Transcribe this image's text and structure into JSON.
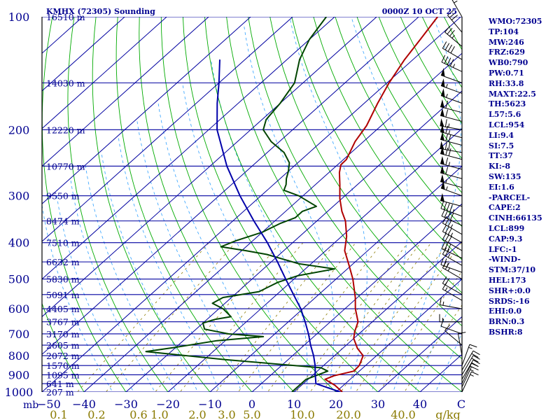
{
  "header": {
    "station_title": "KMHX (72305) Sounding",
    "valid_time": "0000Z 10 OCT 25"
  },
  "indices": [
    {
      "text": "WMO:72305"
    },
    {
      "text": "TP:104"
    },
    {
      "text": "MW:246"
    },
    {
      "text": "FRZ:629"
    },
    {
      "text": "WB0:790"
    },
    {
      "text": "PW:0.71"
    },
    {
      "text": "RH:33.8"
    },
    {
      "text": "MAXT:22.5"
    },
    {
      "text": "TH:5623"
    },
    {
      "text": "L57:5.6"
    },
    {
      "text": "LCL:954"
    },
    {
      "text": "LI:9.4"
    },
    {
      "text": "SI:7.5"
    },
    {
      "text": "TT:37"
    },
    {
      "text": "KI:-8"
    },
    {
      "text": "SW:135"
    },
    {
      "text": "EI:1.6"
    },
    {
      "text": "-PARCEL-"
    },
    {
      "text": "CAPE:2"
    },
    {
      "text": "CINH:66135"
    },
    {
      "text": "LCL:899"
    },
    {
      "text": "CAP:9.3"
    },
    {
      "text": "LFC:-1"
    },
    {
      "text": "-WIND-"
    },
    {
      "text": "STM:37/10"
    },
    {
      "text": "HEL:173"
    },
    {
      "text": "SHR+:0.0"
    },
    {
      "text": "SRDS:-16"
    },
    {
      "text": "EHI:0.0"
    },
    {
      "text": "BRN:0.3"
    },
    {
      "text": "BSHR:8"
    }
  ],
  "chart_data": {
    "type": "line",
    "subtype": "skew-T log-P sounding",
    "title": "KMHX (72305) Sounding",
    "pressure_range_mb": [
      1000,
      100
    ],
    "temperature_range_c": [
      -50,
      50
    ],
    "y_axis_unit": "mb",
    "pressure_labels": [
      {
        "p": 100,
        "label": "100"
      },
      {
        "p": 200,
        "label": "200"
      },
      {
        "p": 300,
        "label": "300"
      },
      {
        "p": 400,
        "label": "400"
      },
      {
        "p": 500,
        "label": "500"
      },
      {
        "p": 600,
        "label": "600"
      },
      {
        "p": 700,
        "label": "700"
      },
      {
        "p": 800,
        "label": "800"
      },
      {
        "p": 900,
        "label": "900"
      },
      {
        "p": 1000,
        "label": "1000"
      }
    ],
    "temperature_ticks": [
      {
        "t": -40,
        "label": "−40"
      },
      {
        "t": -30,
        "label": "−30"
      },
      {
        "t": -20,
        "label": "−20"
      },
      {
        "t": -10,
        "label": "−10"
      },
      {
        "t": 0,
        "label": "0"
      },
      {
        "t": 10,
        "label": "10"
      },
      {
        "t": 20,
        "label": "20"
      },
      {
        "t": 30,
        "label": "30"
      },
      {
        "t": 40,
        "label": "40"
      }
    ],
    "axis_corner_labels": {
      "left_unit": "mb",
      "left_temp": "−50",
      "right_temp": "C"
    },
    "mixing_ratio_labels": [
      {
        "t": -46,
        "label": "0.1"
      },
      {
        "t": -37,
        "label": "0.2"
      },
      {
        "t": -27,
        "label": "0.6"
      },
      {
        "t": -22,
        "label": "1.0"
      },
      {
        "t": -13,
        "label": "2.0"
      },
      {
        "t": -6,
        "label": "3.0"
      },
      {
        "t": 0,
        "label": "5.0"
      },
      {
        "t": 12,
        "label": "10.0"
      },
      {
        "t": 23,
        "label": "20.0"
      },
      {
        "t": 36,
        "label": "40.0"
      }
    ],
    "mixing_ratio_unit": "g/kg",
    "height_labels": [
      {
        "p": 100,
        "label": "16510 m"
      },
      {
        "p": 150,
        "label": "14030 m"
      },
      {
        "p": 200,
        "label": "12220 m"
      },
      {
        "p": 250,
        "label": "10770 m"
      },
      {
        "p": 300,
        "label": "9550 m"
      },
      {
        "p": 350,
        "label": "8474 m"
      },
      {
        "p": 400,
        "label": "7510 m"
      },
      {
        "p": 450,
        "label": "6632 m"
      },
      {
        "p": 500,
        "label": "5830 m"
      },
      {
        "p": 550,
        "label": "5091 m"
      },
      {
        "p": 600,
        "label": "4405 m"
      },
      {
        "p": 650,
        "label": "3767 m"
      },
      {
        "p": 700,
        "label": "3170 m"
      },
      {
        "p": 750,
        "label": "2605 m"
      },
      {
        "p": 800,
        "label": "2072 m"
      },
      {
        "p": 850,
        "label": "1570 m"
      },
      {
        "p": 900,
        "label": "1095 m"
      },
      {
        "p": 950,
        "label": "641 m"
      },
      {
        "p": 1000,
        "label": "207 m"
      }
    ],
    "series": [
      {
        "name": "Temperature",
        "color": "#b00000",
        "points": [
          {
            "p": 1000,
            "t": 21.5
          },
          {
            "p": 960,
            "t": 18
          },
          {
            "p": 925,
            "t": 14
          },
          {
            "p": 905,
            "t": 15.2
          },
          {
            "p": 880,
            "t": 18.7
          },
          {
            "p": 850,
            "t": 18.5
          },
          {
            "p": 800,
            "t": 16.8
          },
          {
            "p": 765,
            "t": 13.5
          },
          {
            "p": 720,
            "t": 10
          },
          {
            "p": 690,
            "t": 8.4
          },
          {
            "p": 650,
            "t": 6.6
          },
          {
            "p": 600,
            "t": 2.5
          },
          {
            "p": 560,
            "t": -0.5
          },
          {
            "p": 500,
            "t": -6
          },
          {
            "p": 460,
            "t": -10.5
          },
          {
            "p": 420,
            "t": -15.5
          },
          {
            "p": 385,
            "t": -18.8
          },
          {
            "p": 350,
            "t": -23.2
          },
          {
            "p": 330,
            "t": -26.6
          },
          {
            "p": 305,
            "t": -30.5
          },
          {
            "p": 280,
            "t": -34.2
          },
          {
            "p": 260,
            "t": -37.5
          },
          {
            "p": 248,
            "t": -39.2
          },
          {
            "p": 240,
            "t": -39.3
          },
          {
            "p": 215,
            "t": -42
          },
          {
            "p": 195,
            "t": -43.5
          },
          {
            "p": 170,
            "t": -46.8
          },
          {
            "p": 150,
            "t": -49.5
          },
          {
            "p": 130,
            "t": -52
          },
          {
            "p": 115,
            "t": -53.6
          },
          {
            "p": 100,
            "t": -55.5
          }
        ]
      },
      {
        "name": "Dewpoint",
        "color": "#004400",
        "points": [
          {
            "p": 1000,
            "t": 9.5
          },
          {
            "p": 960,
            "t": 9.5
          },
          {
            "p": 925,
            "t": 9.5
          },
          {
            "p": 880,
            "t": 12.5
          },
          {
            "p": 862,
            "t": 10
          },
          {
            "p": 820,
            "t": -15
          },
          {
            "p": 795,
            "t": -28
          },
          {
            "p": 780,
            "t": -36
          },
          {
            "p": 760,
            "t": -30
          },
          {
            "p": 730,
            "t": -22
          },
          {
            "p": 712,
            "t": -12
          },
          {
            "p": 700,
            "t": -21
          },
          {
            "p": 680,
            "t": -28
          },
          {
            "p": 655,
            "t": -30
          },
          {
            "p": 640,
            "t": -28
          },
          {
            "p": 630,
            "t": -25
          },
          {
            "p": 600,
            "t": -29
          },
          {
            "p": 580,
            "t": -33
          },
          {
            "p": 560,
            "t": -32
          },
          {
            "p": 540,
            "t": -25
          },
          {
            "p": 510,
            "t": -23
          },
          {
            "p": 490,
            "t": -20
          },
          {
            "p": 470,
            "t": -13
          },
          {
            "p": 455,
            "t": -23
          },
          {
            "p": 430,
            "t": -33
          },
          {
            "p": 420,
            "t": -39
          },
          {
            "p": 410,
            "t": -46
          },
          {
            "p": 395,
            "t": -44
          },
          {
            "p": 375,
            "t": -40
          },
          {
            "p": 355,
            "t": -38
          },
          {
            "p": 343,
            "t": -36
          },
          {
            "p": 330,
            "t": -36
          },
          {
            "p": 320,
            "t": -34
          },
          {
            "p": 300,
            "t": -41
          },
          {
            "p": 290,
            "t": -46
          },
          {
            "p": 280,
            "t": -47
          },
          {
            "p": 270,
            "t": -48.5
          },
          {
            "p": 258,
            "t": -50
          },
          {
            "p": 245,
            "t": -52
          },
          {
            "p": 230,
            "t": -56
          },
          {
            "p": 215,
            "t": -62
          },
          {
            "p": 200,
            "t": -67
          },
          {
            "p": 188,
            "t": -69
          },
          {
            "p": 170,
            "t": -70
          },
          {
            "p": 150,
            "t": -72
          },
          {
            "p": 130,
            "t": -77
          },
          {
            "p": 115,
            "t": -80
          },
          {
            "p": 100,
            "t": -82
          }
        ]
      },
      {
        "name": "Parcel path",
        "color": "#0000aa",
        "points": [
          {
            "p": 1000,
            "t": 21
          },
          {
            "p": 950,
            "t": 13
          },
          {
            "p": 900,
            "t": 10.5
          },
          {
            "p": 850,
            "t": 8
          },
          {
            "p": 800,
            "t": 5
          },
          {
            "p": 750,
            "t": 1.5
          },
          {
            "p": 700,
            "t": -2
          },
          {
            "p": 650,
            "t": -6
          },
          {
            "p": 600,
            "t": -10.5
          },
          {
            "p": 550,
            "t": -16
          },
          {
            "p": 500,
            "t": -22
          },
          {
            "p": 450,
            "t": -28.5
          },
          {
            "p": 400,
            "t": -36
          },
          {
            "p": 350,
            "t": -45
          },
          {
            "p": 300,
            "t": -55
          },
          {
            "p": 250,
            "t": -66
          },
          {
            "p": 200,
            "t": -78
          },
          {
            "p": 170,
            "t": -85
          },
          {
            "p": 150,
            "t": -90
          },
          {
            "p": 130,
            "t": -96
          }
        ]
      }
    ],
    "wind_profile": {
      "units": "kt",
      "levels": [
        {
          "p": 1000,
          "dir": 25,
          "spd": 15
        },
        {
          "p": 970,
          "dir": 25,
          "spd": 15
        },
        {
          "p": 950,
          "dir": 25,
          "spd": 15
        },
        {
          "p": 925,
          "dir": 30,
          "spd": 20
        },
        {
          "p": 900,
          "dir": 30,
          "spd": 20
        },
        {
          "p": 875,
          "dir": 30,
          "spd": 20
        },
        {
          "p": 850,
          "dir": 20,
          "spd": 15
        },
        {
          "p": 800,
          "dir": 350,
          "spd": 10
        },
        {
          "p": 750,
          "dir": 310,
          "spd": 10
        },
        {
          "p": 700,
          "dir": 290,
          "spd": 10
        },
        {
          "p": 650,
          "dir": 270,
          "spd": 15
        },
        {
          "p": 600,
          "dir": 280,
          "spd": 15
        },
        {
          "p": 570,
          "dir": 300,
          "spd": 15
        },
        {
          "p": 550,
          "dir": 300,
          "spd": 20
        },
        {
          "p": 500,
          "dir": 300,
          "spd": 25
        },
        {
          "p": 480,
          "dir": 290,
          "spd": 25
        },
        {
          "p": 460,
          "dir": 300,
          "spd": 25
        },
        {
          "p": 440,
          "dir": 295,
          "spd": 30
        },
        {
          "p": 420,
          "dir": 300,
          "spd": 30
        },
        {
          "p": 400,
          "dir": 300,
          "spd": 35
        },
        {
          "p": 380,
          "dir": 300,
          "spd": 35
        },
        {
          "p": 360,
          "dir": 295,
          "spd": 40
        },
        {
          "p": 340,
          "dir": 290,
          "spd": 45
        },
        {
          "p": 320,
          "dir": 285,
          "spd": 50
        },
        {
          "p": 300,
          "dir": 290,
          "spd": 55
        },
        {
          "p": 285,
          "dir": 285,
          "spd": 55
        },
        {
          "p": 270,
          "dir": 285,
          "spd": 60
        },
        {
          "p": 255,
          "dir": 285,
          "spd": 65
        },
        {
          "p": 240,
          "dir": 285,
          "spd": 70
        },
        {
          "p": 230,
          "dir": 280,
          "spd": 70
        },
        {
          "p": 220,
          "dir": 285,
          "spd": 70
        },
        {
          "p": 210,
          "dir": 285,
          "spd": 65
        },
        {
          "p": 200,
          "dir": 280,
          "spd": 65
        },
        {
          "p": 190,
          "dir": 285,
          "spd": 60
        },
        {
          "p": 180,
          "dir": 285,
          "spd": 60
        },
        {
          "p": 170,
          "dir": 290,
          "spd": 55
        },
        {
          "p": 160,
          "dir": 290,
          "spd": 55
        },
        {
          "p": 150,
          "dir": 290,
          "spd": 50
        },
        {
          "p": 140,
          "dir": 295,
          "spd": 45
        },
        {
          "p": 130,
          "dir": 300,
          "spd": 40
        },
        {
          "p": 120,
          "dir": 310,
          "spd": 35
        },
        {
          "p": 110,
          "dir": 320,
          "spd": 30
        },
        {
          "p": 100,
          "dir": 330,
          "spd": 25
        }
      ]
    },
    "colors": {
      "isobars": "#0000a0",
      "isotherms": "#0000a0",
      "dry_adiabats": "#00aa00",
      "moist_adiabats": "#44aaff",
      "mixing_ratio": "#006600",
      "wind_barbs": "#000000",
      "mixing_ratio_labels": "#8a7a00",
      "text": "#000090",
      "background": "#ffffff"
    }
  }
}
